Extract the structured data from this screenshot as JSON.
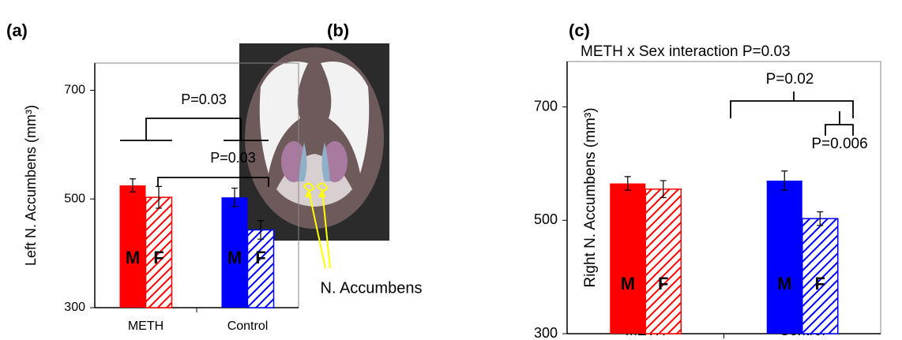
{
  "panel_labels": [
    "(a)",
    "(b)",
    "(c)"
  ],
  "image": {
    "label": "N. Accumbens"
  },
  "chart_data": [
    {
      "type": "bar",
      "ylabel": "Left N. Accumbens (mm³)",
      "categories": [
        "METH",
        "Control"
      ],
      "series": [
        {
          "name": "M",
          "colors": [
            "#ff0000",
            "#0000ff"
          ],
          "hatched": false,
          "values": [
            525,
            503
          ],
          "errors": [
            12,
            17
          ]
        },
        {
          "name": "F",
          "colors": [
            "#ff0000",
            "#0000ff"
          ],
          "hatched": true,
          "values": [
            503,
            443
          ],
          "errors": [
            20,
            17
          ]
        }
      ],
      "ylim": [
        300,
        750
      ],
      "yticks": [
        300,
        500,
        700
      ],
      "annotations": [
        {
          "text": "P=0.03"
        },
        {
          "text": "P=0.03"
        }
      ]
    },
    {
      "type": "bar",
      "title": "METH x Sex interaction P=0.03",
      "ylabel": "Right N. Accumbens (mm³)",
      "categories": [
        "METH",
        "Control"
      ],
      "series": [
        {
          "name": "M",
          "colors": [
            "#ff0000",
            "#0000ff"
          ],
          "hatched": false,
          "values": [
            565,
            570
          ],
          "errors": [
            12,
            17
          ]
        },
        {
          "name": "F",
          "colors": [
            "#ff0000",
            "#0000ff"
          ],
          "hatched": true,
          "values": [
            555,
            503
          ],
          "errors": [
            15,
            12
          ]
        }
      ],
      "ylim": [
        300,
        780
      ],
      "yticks": [
        300,
        500,
        700
      ],
      "annotations": [
        {
          "text": "P=0.02"
        },
        {
          "text": "P=0.006"
        }
      ]
    }
  ]
}
